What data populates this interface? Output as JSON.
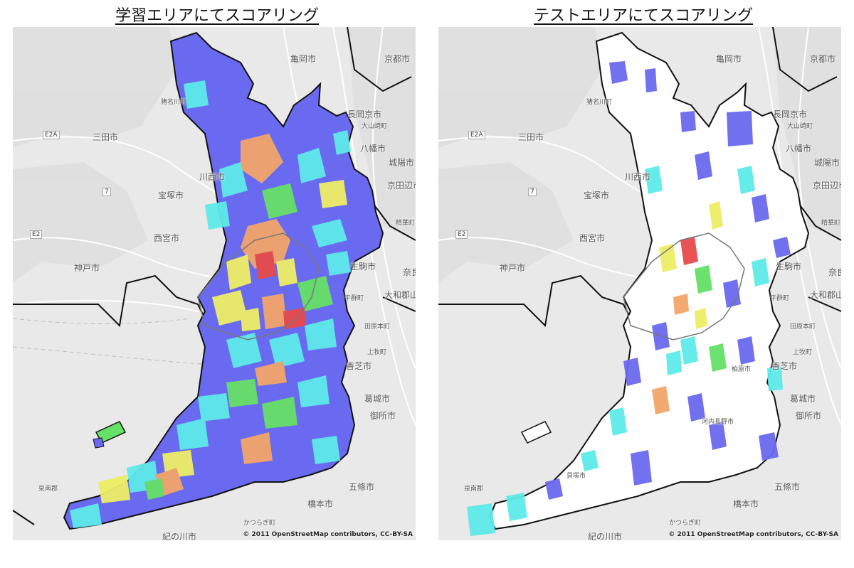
{
  "titles": {
    "left": "学習エリアにてスコアリング",
    "right": "テストエリアにてスコアリング"
  },
  "attribution": "© 2011 OpenStreetMap contributors, CC-BY-SA",
  "place_labels": {
    "kameoka": "亀岡市",
    "kyoto": "京都市",
    "inagawa": "猪名川町",
    "nagaokakyo": "長岡京市",
    "oyamazaki": "大山崎町",
    "sanda": "三田市",
    "yawata": "八幡市",
    "joyo": "城陽市",
    "kawanishi": "川西市",
    "takarazuka": "宝塚市",
    "kyotanabe": "京田辺市",
    "seika": "精華町",
    "nishinomiya": "西宮市",
    "kobe": "神戸市",
    "ikoma": "生駒市",
    "nara": "奈良市",
    "heguri": "平群町",
    "yamatokoriyama": "大和郡山市",
    "kashiba": "香芝市",
    "kanmaki": "上牧町",
    "tawaramoto": "田原本町",
    "katsuragi": "葛城市",
    "gose": "御所市",
    "gojo": "五條市",
    "hashimoto": "橋本市",
    "kudoyama": "かつらぎ町",
    "kinokawa": "紀の川市",
    "sennan": "泉南郡",
    "kashiwara": "柏原市",
    "kawachinagano": "河内長野市",
    "kaizuka": "貝塚市"
  },
  "road_labels": {
    "e2a": "E2A",
    "e2": "E2",
    "r7": "7"
  },
  "legend_colors": {
    "low": "#6666ee",
    "mid_low": "#5eeaea",
    "mid": "#66e066",
    "mid_high": "#eeee66",
    "high": "#f2a66a",
    "top": "#e84a4a"
  }
}
